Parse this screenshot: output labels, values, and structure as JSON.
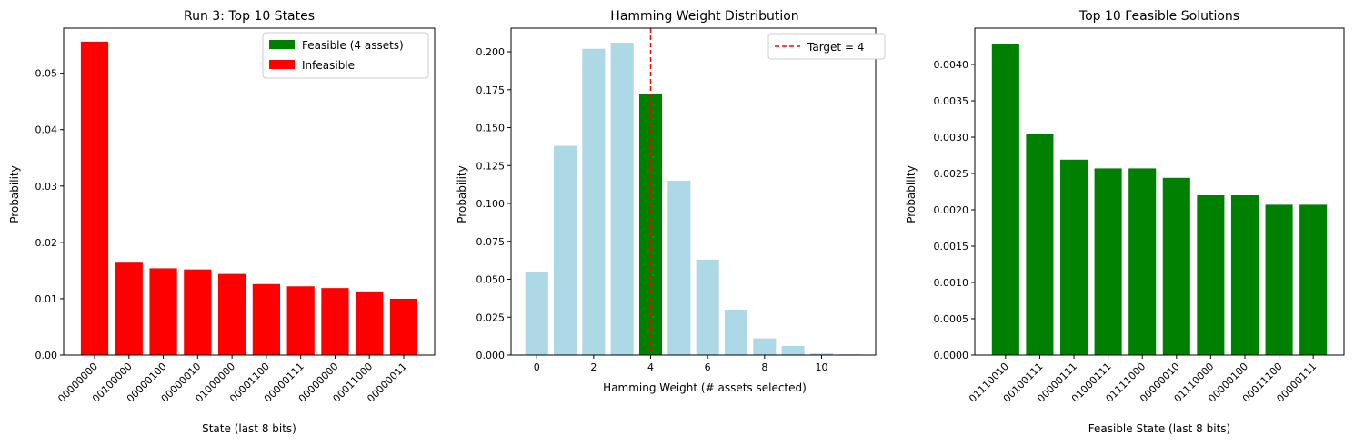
{
  "chart_data": [
    {
      "type": "bar",
      "title": "Run 3: Top 10 States",
      "xlabel": "State (last 8 bits)",
      "ylabel": "Probability",
      "ylim": [
        0,
        0.058
      ],
      "yticks": [
        "0.00",
        "0.01",
        "0.02",
        "0.03",
        "0.04",
        "0.05"
      ],
      "categories": [
        "00000000",
        "00100000",
        "00000100",
        "00000010",
        "01000000",
        "00001100",
        "00000111",
        "00000000",
        "00011000",
        "00000011"
      ],
      "values": [
        0.0556,
        0.0164,
        0.0154,
        0.0152,
        0.0144,
        0.0126,
        0.0122,
        0.0119,
        0.0113,
        0.01
      ],
      "bar_colors": [
        "#ff0000",
        "#ff0000",
        "#ff0000",
        "#ff0000",
        "#ff0000",
        "#ff0000",
        "#ff0000",
        "#ff0000",
        "#ff0000",
        "#ff0000"
      ],
      "legend_position": "top-right",
      "legend": [
        {
          "label": "Feasible (4 assets)",
          "color": "#008000"
        },
        {
          "label": "Infeasible",
          "color": "#ff0000"
        }
      ]
    },
    {
      "type": "bar",
      "title": "Hamming Weight Distribution",
      "xlabel": "Hamming Weight (# assets selected)",
      "ylabel": "Probability",
      "xlim": [
        -0.9,
        11.9
      ],
      "ylim": [
        0,
        0.2156
      ],
      "yticks": [
        "0.000",
        "0.025",
        "0.050",
        "0.075",
        "0.100",
        "0.125",
        "0.150",
        "0.175",
        "0.200"
      ],
      "xticks": [
        "0",
        "2",
        "4",
        "6",
        "8",
        "10"
      ],
      "x": [
        0,
        1,
        2,
        3,
        4,
        5,
        6,
        7,
        8,
        9,
        10,
        11
      ],
      "values": [
        0.055,
        0.138,
        0.202,
        0.206,
        0.172,
        0.115,
        0.063,
        0.03,
        0.011,
        0.006,
        0.001,
        0.0005
      ],
      "bar_color": "#add8e6",
      "highlight_color": "#008000",
      "highlight_x": 4,
      "target_line": {
        "x": 4,
        "color": "#ff0000",
        "style": "dashed"
      },
      "legend_position": "top-right",
      "legend": [
        {
          "label": "Target = 4",
          "color": "#ff0000"
        }
      ]
    },
    {
      "type": "bar",
      "title": "Top 10 Feasible Solutions",
      "xlabel": "Feasible State (last 8 bits)",
      "ylabel": "Probability",
      "ylim": [
        0,
        0.0045
      ],
      "yticks": [
        "0.0000",
        "0.0005",
        "0.0010",
        "0.0015",
        "0.0020",
        "0.0025",
        "0.0030",
        "0.0035",
        "0.0040"
      ],
      "categories": [
        "01110010",
        "00100111",
        "00000111",
        "01000111",
        "01111000",
        "00000010",
        "01110000",
        "00000100",
        "00011100",
        "00000111"
      ],
      "values": [
        0.00428,
        0.00305,
        0.00269,
        0.00257,
        0.00257,
        0.00244,
        0.0022,
        0.0022,
        0.00207,
        0.00207
      ],
      "bar_color": "#008000"
    }
  ]
}
